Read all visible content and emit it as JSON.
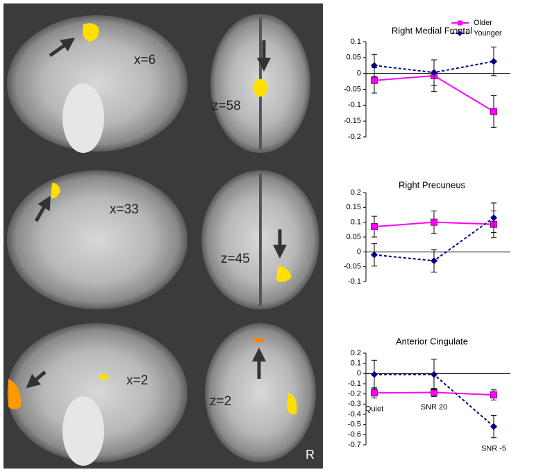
{
  "brain_labels": [
    "x=6",
    "z=58",
    "x=33",
    "z=45",
    "x=2",
    "z=2"
  ],
  "orientation_label": "R",
  "chart_data": [
    {
      "type": "line",
      "title": "Right Medial Frontal",
      "categories": [
        null,
        null,
        null
      ],
      "series": [
        {
          "name": "Older",
          "color": "#ff00ff",
          "marker": "square",
          "dash": false,
          "values": [
            -0.022,
            -0.007,
            -0.12
          ],
          "errors": [
            0.04,
            0.05,
            0.05
          ]
        },
        {
          "name": "Younger",
          "color": "#000080",
          "marker": "diamond",
          "dash": true,
          "values": [
            0.025,
            0.003,
            0.038
          ],
          "errors": [
            0.035,
            0.04,
            0.045
          ]
        }
      ],
      "ylim": [
        -0.2,
        0.1
      ],
      "yticks": [
        -0.2,
        -0.15,
        -0.1,
        -0.05,
        0,
        0.05,
        0.1
      ],
      "legend": "top-right"
    },
    {
      "type": "line",
      "title": "Right Precuneus",
      "categories": [
        null,
        null,
        null
      ],
      "series": [
        {
          "name": "Older",
          "color": "#ff00ff",
          "marker": "square",
          "dash": false,
          "values": [
            0.085,
            0.1,
            0.093
          ],
          "errors": [
            0.035,
            0.038,
            0.045
          ]
        },
        {
          "name": "Younger",
          "color": "#000080",
          "marker": "diamond",
          "dash": true,
          "values": [
            -0.01,
            -0.03,
            0.115
          ],
          "errors": [
            0.038,
            0.038,
            0.05
          ]
        }
      ],
      "ylim": [
        -0.1,
        0.2
      ],
      "yticks": [
        -0.1,
        -0.05,
        0,
        0.05,
        0.1,
        0.15,
        0.2
      ]
    },
    {
      "type": "line",
      "title": "Anterior Cingulate",
      "categories": [
        "Quiet",
        "SNR 20",
        "SNR -5"
      ],
      "series": [
        {
          "name": "Older",
          "color": "#ff00ff",
          "marker": "square",
          "dash": false,
          "values": [
            -0.19,
            -0.185,
            -0.21
          ],
          "errors": [
            0.05,
            0.04,
            0.05
          ]
        },
        {
          "name": "Younger",
          "color": "#000080",
          "marker": "diamond",
          "dash": true,
          "values": [
            -0.01,
            -0.01,
            -0.52
          ],
          "errors": [
            0.14,
            0.15,
            0.11
          ]
        }
      ],
      "ylim": [
        -0.7,
        0.2
      ],
      "yticks": [
        -0.7,
        -0.6,
        -0.5,
        -0.4,
        -0.3,
        -0.2,
        -0.1,
        0,
        0.1,
        0.2
      ]
    }
  ]
}
